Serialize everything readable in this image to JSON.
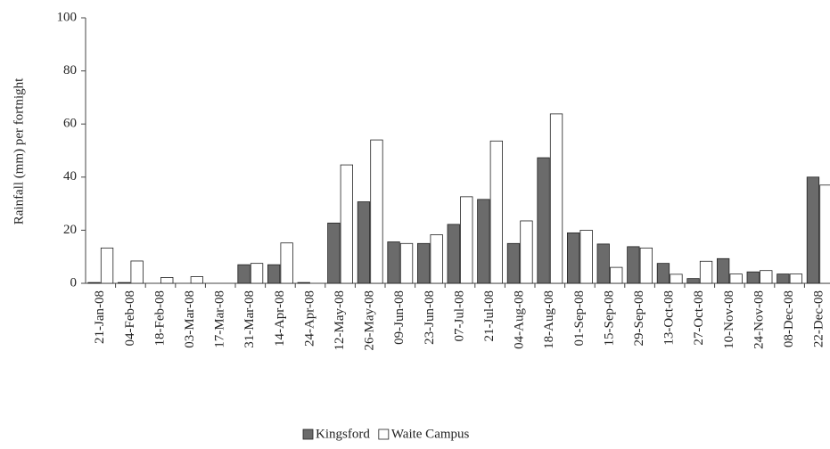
{
  "chart_data": {
    "type": "bar",
    "y_label": "Rainfall (mm) per fortnight",
    "categories": [
      "21-Jan-08",
      "04-Feb-08",
      "18-Feb-08",
      "03-Mar-08",
      "17-Mar-08",
      "31-Mar-08",
      "14-Apr-08",
      "24-Apr-08",
      "12-May-08",
      "26-May-08",
      "09-Jun-08",
      "23-Jun-08",
      "07-Jul-08",
      "21-Jul-08",
      "04-Aug-08",
      "18-Aug-08",
      "01-Sep-08",
      "15-Sep-08",
      "29-Sep-08",
      "13-Oct-08",
      "27-Oct-08",
      "10-Nov-08",
      "24-Nov-08",
      "08-Dec-08",
      "22-Dec-08"
    ],
    "series": [
      {
        "name": "Kingsford",
        "color": "#6b6b6b",
        "values": [
          0.3,
          0.3,
          0,
          0,
          0,
          7,
          7,
          0.3,
          22.7,
          30.7,
          15.6,
          15,
          22.2,
          31.6,
          15,
          47.3,
          19,
          14.8,
          13.8,
          7.5,
          1.8,
          9.3,
          4.3,
          3.5,
          40
        ]
      },
      {
        "name": "Waite Campus",
        "color": "#ffffff",
        "values": [
          13.3,
          8.4,
          2.2,
          2.5,
          0,
          7.5,
          15.2,
          0,
          44.6,
          54,
          15,
          18.3,
          32.6,
          53.6,
          23.5,
          63.8,
          20,
          6,
          13.3,
          3.4,
          8.3,
          3.5,
          4.8,
          3.5,
          37
        ]
      }
    ],
    "ylim": [
      0,
      100
    ],
    "yticks": [
      0,
      20,
      40,
      60,
      80,
      100
    ],
    "grid": false,
    "legend": "bottom"
  }
}
